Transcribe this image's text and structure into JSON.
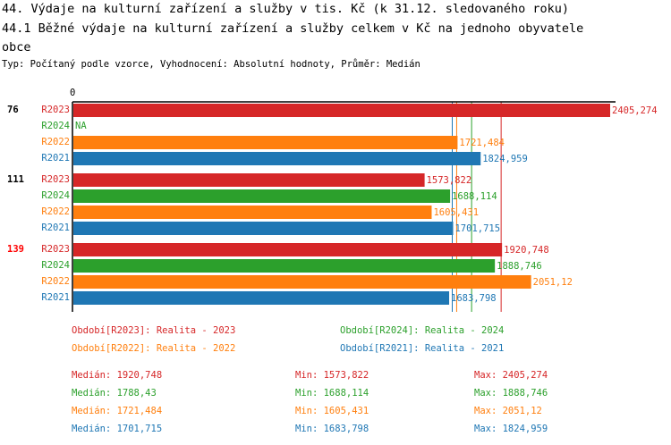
{
  "title_line1": "44. Výdaje na kulturní zařízení a služby v tis. Kč (k 31.12. sledovaného roku)",
  "title_line2": "44.1 Běžné výdaje na kulturní zařízení a služby celkem v Kč na jednoho obyvatele",
  "title_line3": "obce",
  "subtitle": "Typ: Počítaný podle vzorce, Vyhodnocení: Absolutní hodnoty, Průměr: Medián",
  "colors": {
    "R2023": "#d62728",
    "R2024": "#2ca02c",
    "R2022": "#ff7f0e",
    "R2021": "#1f77b4"
  },
  "chart_data": {
    "type": "bar",
    "orientation": "horizontal",
    "x_tick_labels": [
      "0"
    ],
    "xlim": [
      0,
      2405.274
    ],
    "groups": [
      {
        "label": "76",
        "highlight": false,
        "bars": [
          {
            "series": "R2023",
            "value": 2405.274,
            "label": "2405,274"
          },
          {
            "series": "R2024",
            "value": null,
            "label": "NA"
          },
          {
            "series": "R2022",
            "value": 1721.484,
            "label": "1721,484"
          },
          {
            "series": "R2021",
            "value": 1824.959,
            "label": "1824,959"
          }
        ]
      },
      {
        "label": "111",
        "highlight": false,
        "bars": [
          {
            "series": "R2023",
            "value": 1573.822,
            "label": "1573,822"
          },
          {
            "series": "R2024",
            "value": 1688.114,
            "label": "1688,114"
          },
          {
            "series": "R2022",
            "value": 1605.431,
            "label": "1605,431"
          },
          {
            "series": "R2021",
            "value": 1701.715,
            "label": "1701,715"
          }
        ]
      },
      {
        "label": "139",
        "highlight": true,
        "bars": [
          {
            "series": "R2023",
            "value": 1920.748,
            "label": "1920,748"
          },
          {
            "series": "R2024",
            "value": 1888.746,
            "label": "1888,746"
          },
          {
            "series": "R2022",
            "value": 2051.12,
            "label": "2051,12"
          },
          {
            "series": "R2021",
            "value": 1683.798,
            "label": "1683,798"
          }
        ]
      }
    ],
    "median_lines": {
      "R2023": 1920.748,
      "R2024": 1788.43,
      "R2022": 1721.484,
      "R2021": 1701.715
    },
    "legend": [
      {
        "series": "R2023",
        "text": "Období[R2023]: Realita - 2023"
      },
      {
        "series": "R2024",
        "text": "Období[R2024]: Realita - 2024"
      },
      {
        "series": "R2022",
        "text": "Období[R2022]: Realita - 2022"
      },
      {
        "series": "R2021",
        "text": "Období[R2021]: Realita - 2021"
      }
    ],
    "stats": [
      {
        "series": "R2023",
        "median": "Medián: 1920,748",
        "min": "Min: 1573,822",
        "max": "Max: 2405,274"
      },
      {
        "series": "R2024",
        "median": "Medián: 1788,43",
        "min": "Min: 1688,114",
        "max": "Max: 1888,746"
      },
      {
        "series": "R2022",
        "median": "Medián: 1721,484",
        "min": "Min: 1605,431",
        "max": "Max: 2051,12"
      },
      {
        "series": "R2021",
        "median": "Medián: 1701,715",
        "min": "Min: 1683,798",
        "max": "Max: 1824,959"
      }
    ]
  }
}
